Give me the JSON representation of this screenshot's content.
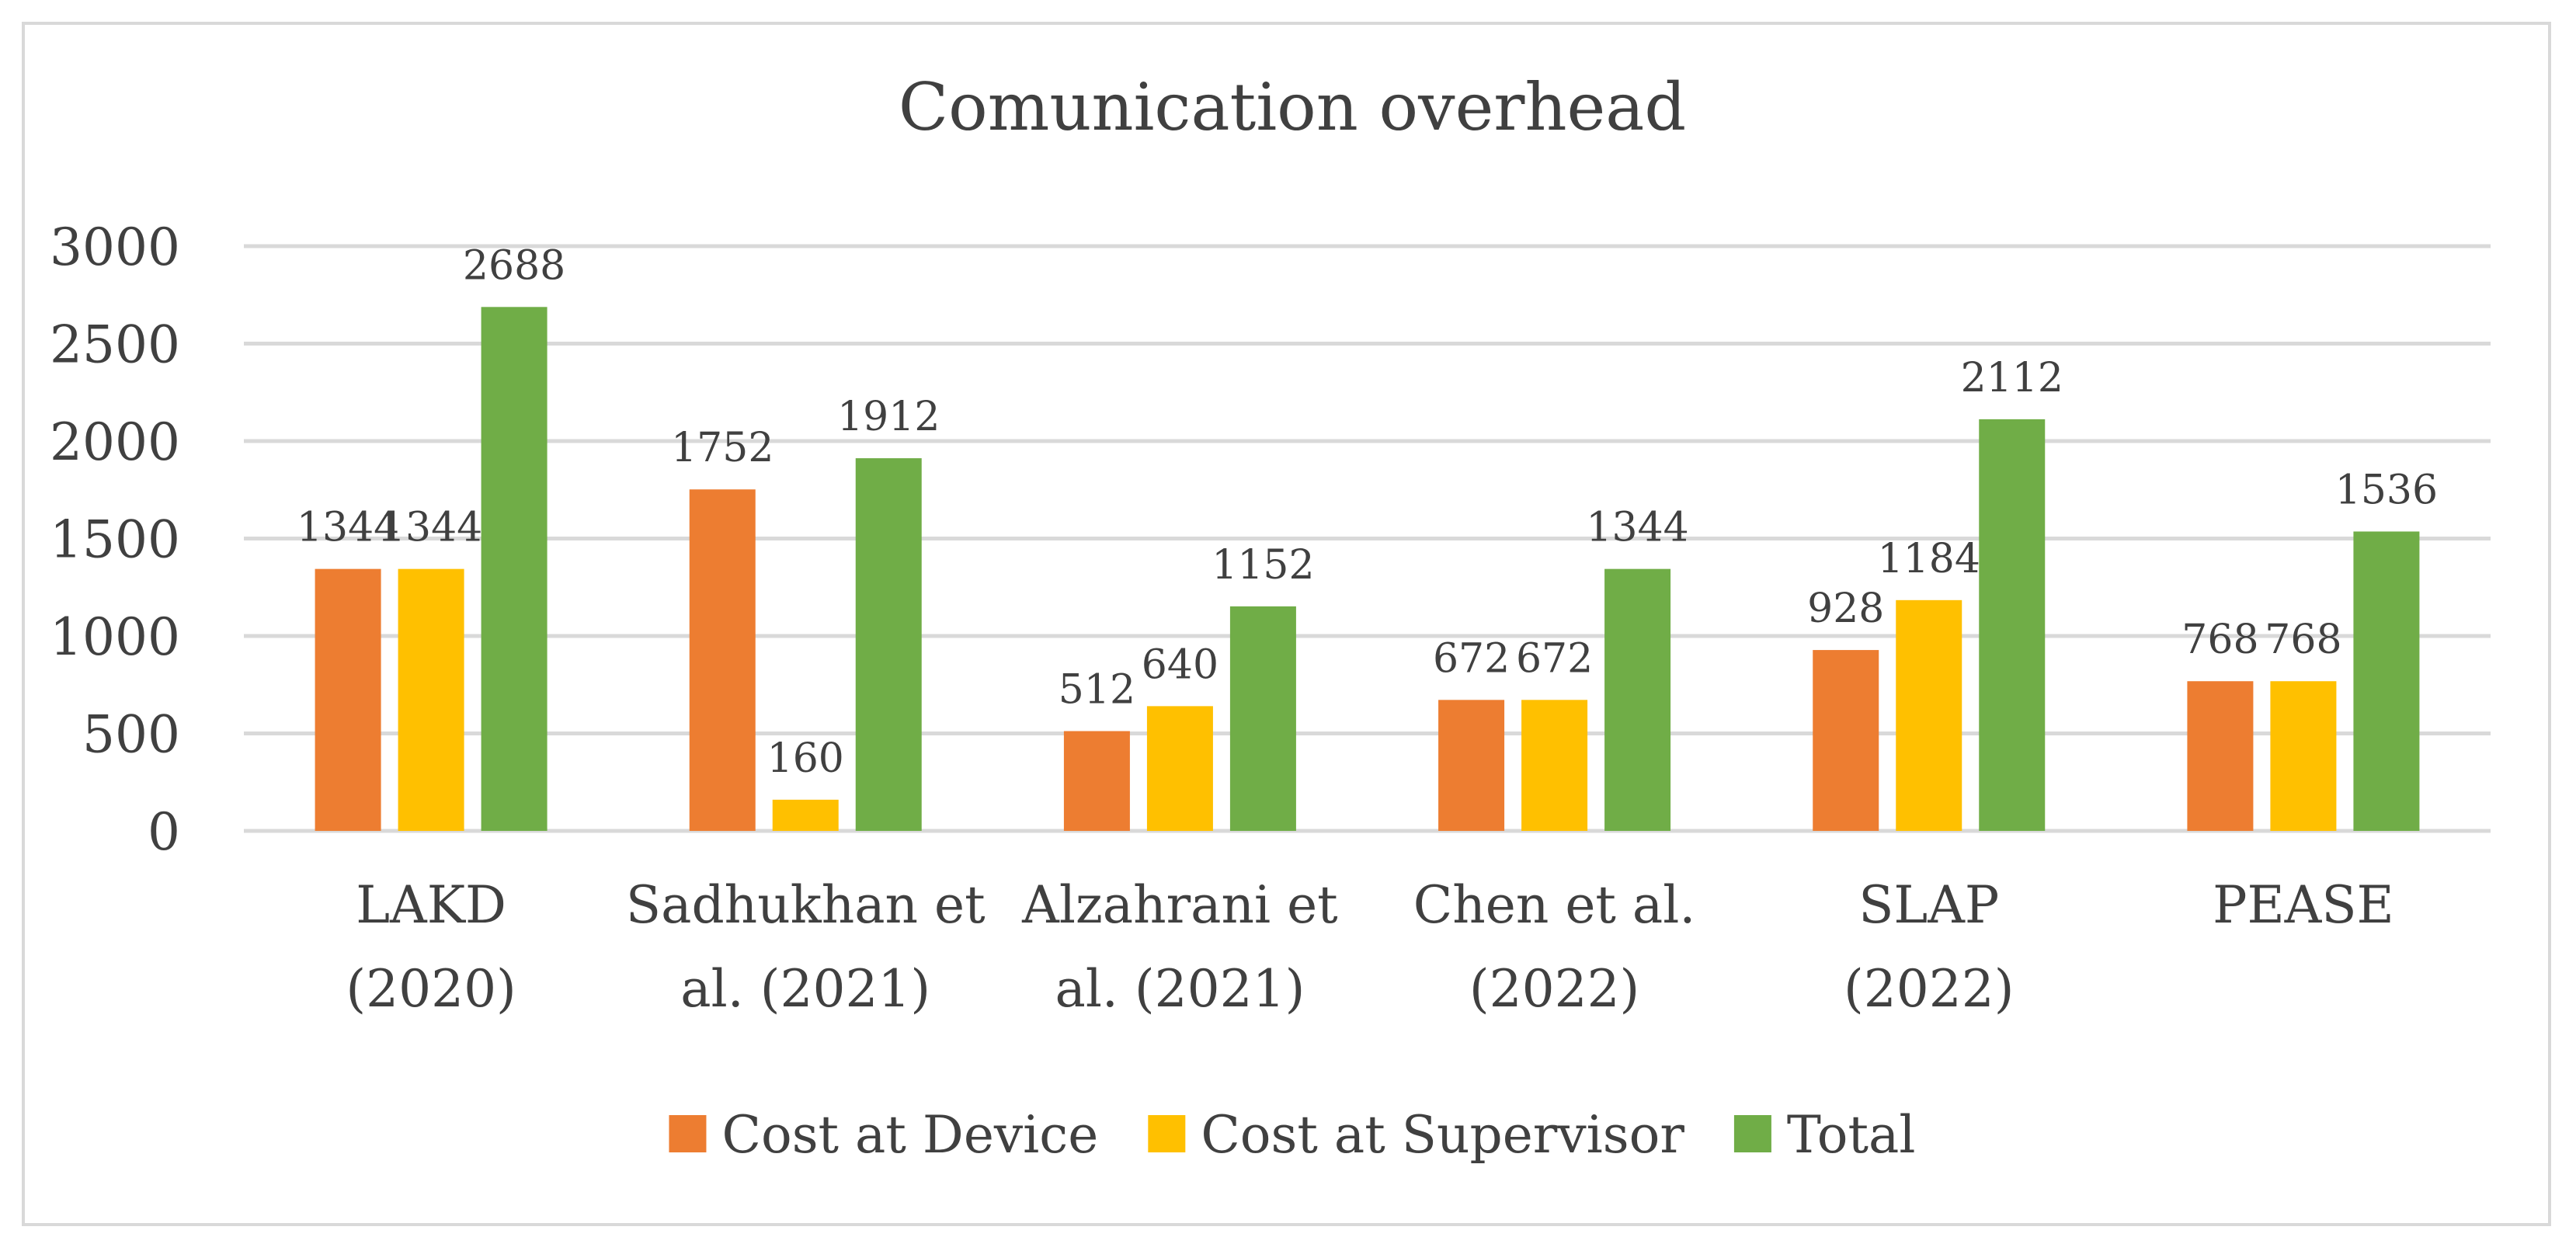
{
  "chart_data": {
    "type": "bar",
    "title": "Comunication overhead",
    "xlabel": "",
    "ylabel": "",
    "ylim": [
      0,
      3000
    ],
    "ytick_step": 500,
    "grid": true,
    "legend_position": "bottom",
    "categories": [
      [
        "LAKD",
        "(2020)"
      ],
      [
        "Sadhukhan et",
        "al. (2021)"
      ],
      [
        "Alzahrani et",
        "al. (2021)"
      ],
      [
        "Chen et al.",
        "(2022)"
      ],
      [
        "SLAP",
        "(2022)"
      ],
      [
        "PEASE"
      ]
    ],
    "series": [
      {
        "name": "Cost at Device",
        "color": "#ED7D31",
        "values": [
          1344,
          1752,
          512,
          672,
          928,
          768
        ]
      },
      {
        "name": "Cost at Supervisor",
        "color": "#FFC000",
        "values": [
          1344,
          160,
          640,
          672,
          1184,
          768
        ]
      },
      {
        "name": "Total",
        "color": "#70AD47",
        "values": [
          2688,
          1912,
          1152,
          1344,
          2112,
          1536
        ]
      }
    ]
  }
}
